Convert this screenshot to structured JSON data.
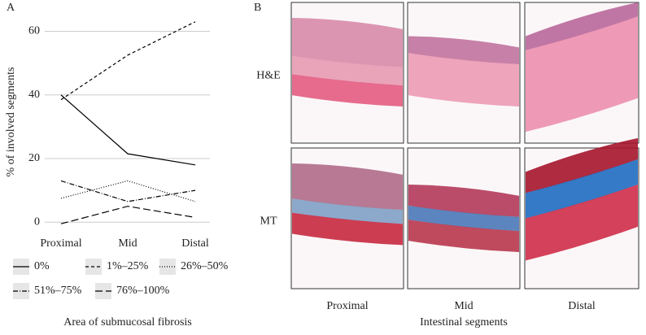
{
  "chart_data": {
    "type": "line",
    "panel_label": "A",
    "y_label": "% of involved segments",
    "x_label": "Area of submucosal fibrosis",
    "categories": [
      "Proximal",
      "Mid",
      "Distal"
    ],
    "ylim": [
      -3,
      66
    ],
    "yticks": [
      0,
      20,
      40,
      60
    ],
    "grid": true,
    "legend": "bottom",
    "series": [
      {
        "name": "0%",
        "color": "#000000",
        "dash": "none",
        "values": [
          40,
          21.5,
          18
        ]
      },
      {
        "name": "1%–25%",
        "color": "#000000",
        "dash": "4,3",
        "values": [
          38.5,
          52.5,
          63
        ]
      },
      {
        "name": "26%–50%",
        "color": "#000000",
        "dash": "1,2",
        "values": [
          7.5,
          13,
          6.5
        ]
      },
      {
        "name": "51%–75%",
        "color": "#000000",
        "dash": "6,2,1,2",
        "values": [
          13,
          6.5,
          10
        ]
      },
      {
        "name": "76%–100%",
        "color": "#000000",
        "dash": "9,4",
        "values": [
          -0.5,
          5,
          1.5
        ]
      }
    ]
  },
  "panel_b": {
    "panel_label": "B",
    "rows": [
      "H&E",
      "MT"
    ],
    "columns": [
      "Proximal",
      "Mid",
      "Distal"
    ],
    "x_label": "Intestinal segments"
  }
}
